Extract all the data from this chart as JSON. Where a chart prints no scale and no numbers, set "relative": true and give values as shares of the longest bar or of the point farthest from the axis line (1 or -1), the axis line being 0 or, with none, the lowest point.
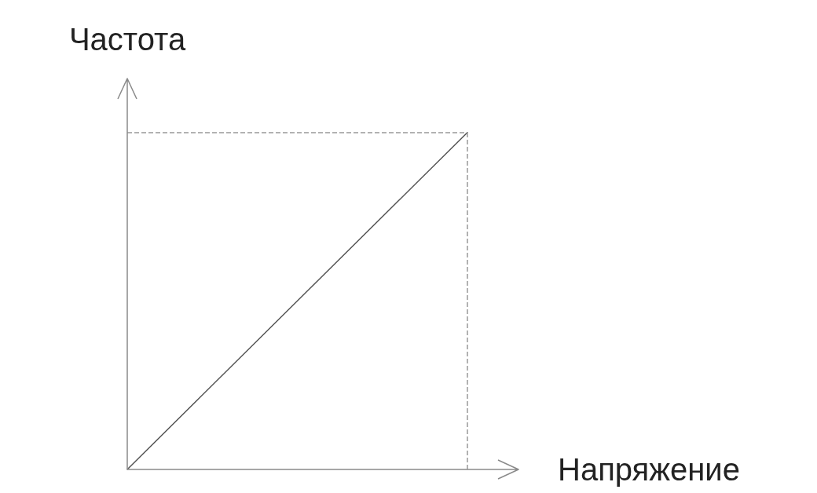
{
  "chart_data": {
    "type": "line",
    "relative": true,
    "xlabel": "Напряжение",
    "ylabel": "Частота",
    "categories": [
      null,
      null
    ],
    "series": [
      {
        "color": "#555555",
        "values": [
          0,
          1
        ]
      }
    ],
    "ref_lines": [
      {
        "axis": "y",
        "value": 1,
        "color": "#999999",
        "line_style": "dashed"
      }
    ],
    "marker": "none",
    "line_style": "solid",
    "grid": false
  }
}
